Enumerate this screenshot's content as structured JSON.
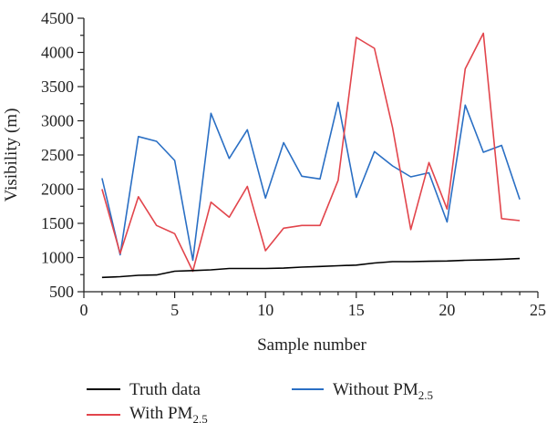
{
  "chart_data": {
    "type": "line",
    "xlabel": "Sample number",
    "ylabel": "Visibility (m)",
    "xlim": [
      0,
      25
    ],
    "ylim": [
      500,
      4500
    ],
    "xticks": [
      0,
      5,
      10,
      15,
      20,
      25
    ],
    "yticks": [
      500,
      1000,
      1500,
      2000,
      2500,
      3000,
      3500,
      4000,
      4500
    ],
    "grid": false,
    "legend": "bottom",
    "x": [
      1,
      2,
      3,
      4,
      5,
      6,
      7,
      8,
      9,
      10,
      11,
      12,
      13,
      14,
      15,
      16,
      17,
      18,
      19,
      20,
      21,
      22,
      23,
      24
    ],
    "series": [
      {
        "name": "Truth data",
        "color": "#000000",
        "values": [
          710,
          720,
          740,
          745,
          800,
          810,
          820,
          840,
          840,
          840,
          845,
          860,
          870,
          880,
          890,
          920,
          940,
          940,
          945,
          950,
          960,
          965,
          975,
          985
        ]
      },
      {
        "name": "With PM2.5",
        "color": "#e2454c",
        "values": [
          2000,
          1060,
          1890,
          1470,
          1350,
          800,
          1810,
          1590,
          2040,
          1100,
          1430,
          1470,
          1470,
          2130,
          4220,
          4060,
          2900,
          1410,
          2390,
          1710,
          3760,
          4280,
          1570,
          1540
        ]
      },
      {
        "name": "Without PM2.5",
        "color": "#2a6fc4",
        "values": [
          2160,
          1040,
          2770,
          2700,
          2420,
          960,
          3110,
          2450,
          2870,
          1870,
          2680,
          2190,
          2150,
          3270,
          1880,
          2550,
          2340,
          2180,
          2240,
          1520,
          3230,
          2540,
          2640,
          1850
        ]
      }
    ]
  },
  "legend": {
    "truth": "Truth data",
    "with_main": "With PM",
    "with_sub": "2.5",
    "without_main": "Without PM",
    "without_sub": "2.5"
  }
}
